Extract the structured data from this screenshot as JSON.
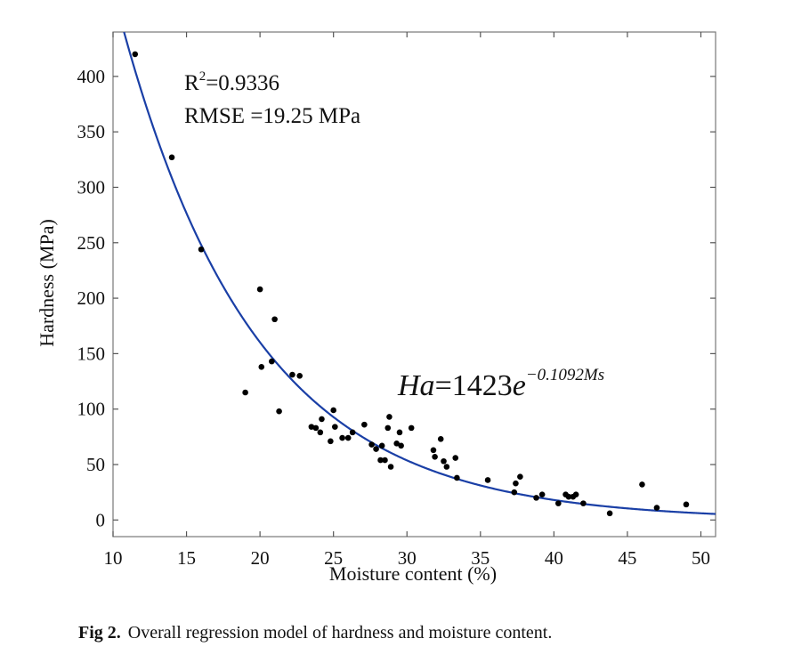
{
  "chart_data": {
    "type": "scatter",
    "title": "",
    "xlabel": "Moisture content (%)",
    "ylabel": "Hardness (MPa)",
    "xlim": [
      10,
      51
    ],
    "ylim": [
      -15,
      440
    ],
    "xticks": [
      10,
      15,
      20,
      25,
      30,
      35,
      40,
      45,
      50
    ],
    "yticks": [
      0,
      50,
      100,
      150,
      200,
      250,
      300,
      350,
      400
    ],
    "grid": false,
    "points": [
      {
        "x": 11.5,
        "y": 420
      },
      {
        "x": 14.0,
        "y": 327
      },
      {
        "x": 16.0,
        "y": 244
      },
      {
        "x": 19.0,
        "y": 115
      },
      {
        "x": 20.0,
        "y": 208
      },
      {
        "x": 20.1,
        "y": 138
      },
      {
        "x": 20.8,
        "y": 143
      },
      {
        "x": 21.0,
        "y": 181
      },
      {
        "x": 21.3,
        "y": 98
      },
      {
        "x": 22.2,
        "y": 131
      },
      {
        "x": 22.7,
        "y": 130
      },
      {
        "x": 23.5,
        "y": 84
      },
      {
        "x": 23.8,
        "y": 83
      },
      {
        "x": 24.1,
        "y": 79
      },
      {
        "x": 24.2,
        "y": 91
      },
      {
        "x": 24.8,
        "y": 71
      },
      {
        "x": 25.0,
        "y": 99
      },
      {
        "x": 25.1,
        "y": 84
      },
      {
        "x": 25.6,
        "y": 74
      },
      {
        "x": 26.0,
        "y": 74
      },
      {
        "x": 26.3,
        "y": 79
      },
      {
        "x": 27.1,
        "y": 86
      },
      {
        "x": 27.6,
        "y": 68
      },
      {
        "x": 27.9,
        "y": 64
      },
      {
        "x": 28.2,
        "y": 54
      },
      {
        "x": 28.3,
        "y": 67
      },
      {
        "x": 28.5,
        "y": 54
      },
      {
        "x": 28.7,
        "y": 83
      },
      {
        "x": 28.8,
        "y": 93
      },
      {
        "x": 28.9,
        "y": 48
      },
      {
        "x": 29.3,
        "y": 69
      },
      {
        "x": 29.5,
        "y": 79
      },
      {
        "x": 29.6,
        "y": 67
      },
      {
        "x": 30.3,
        "y": 83
      },
      {
        "x": 31.8,
        "y": 63
      },
      {
        "x": 31.9,
        "y": 57
      },
      {
        "x": 32.3,
        "y": 73
      },
      {
        "x": 32.5,
        "y": 53
      },
      {
        "x": 32.7,
        "y": 48
      },
      {
        "x": 33.3,
        "y": 56
      },
      {
        "x": 33.4,
        "y": 38
      },
      {
        "x": 35.5,
        "y": 36
      },
      {
        "x": 37.3,
        "y": 25
      },
      {
        "x": 37.4,
        "y": 33
      },
      {
        "x": 37.7,
        "y": 39
      },
      {
        "x": 38.8,
        "y": 20
      },
      {
        "x": 39.2,
        "y": 23
      },
      {
        "x": 40.3,
        "y": 15
      },
      {
        "x": 40.8,
        "y": 23
      },
      {
        "x": 41.0,
        "y": 21
      },
      {
        "x": 41.3,
        "y": 21
      },
      {
        "x": 41.5,
        "y": 23
      },
      {
        "x": 42.0,
        "y": 15
      },
      {
        "x": 43.8,
        "y": 6
      },
      {
        "x": 46.0,
        "y": 32
      },
      {
        "x": 47.0,
        "y": 11
      },
      {
        "x": 49.0,
        "y": 14
      }
    ],
    "fit": {
      "name": "regression curve",
      "form": "exponential",
      "a": 1423,
      "b": -0.1092,
      "color": "#1a3fa6"
    },
    "point_color": "#000000",
    "annotations": {
      "r2_prefix": "R",
      "r2_exp": "2",
      "r2_value": "=0.9336",
      "rmse": "RMSE =19.25 MPa",
      "eq_lhs": "Ha",
      "eq_mid": "=1423",
      "eq_base": "e",
      "eq_exp": "−0.1092Ms"
    }
  },
  "caption": {
    "label": "Fig 2.",
    "text": "Overall regression model of hardness and moisture content."
  }
}
